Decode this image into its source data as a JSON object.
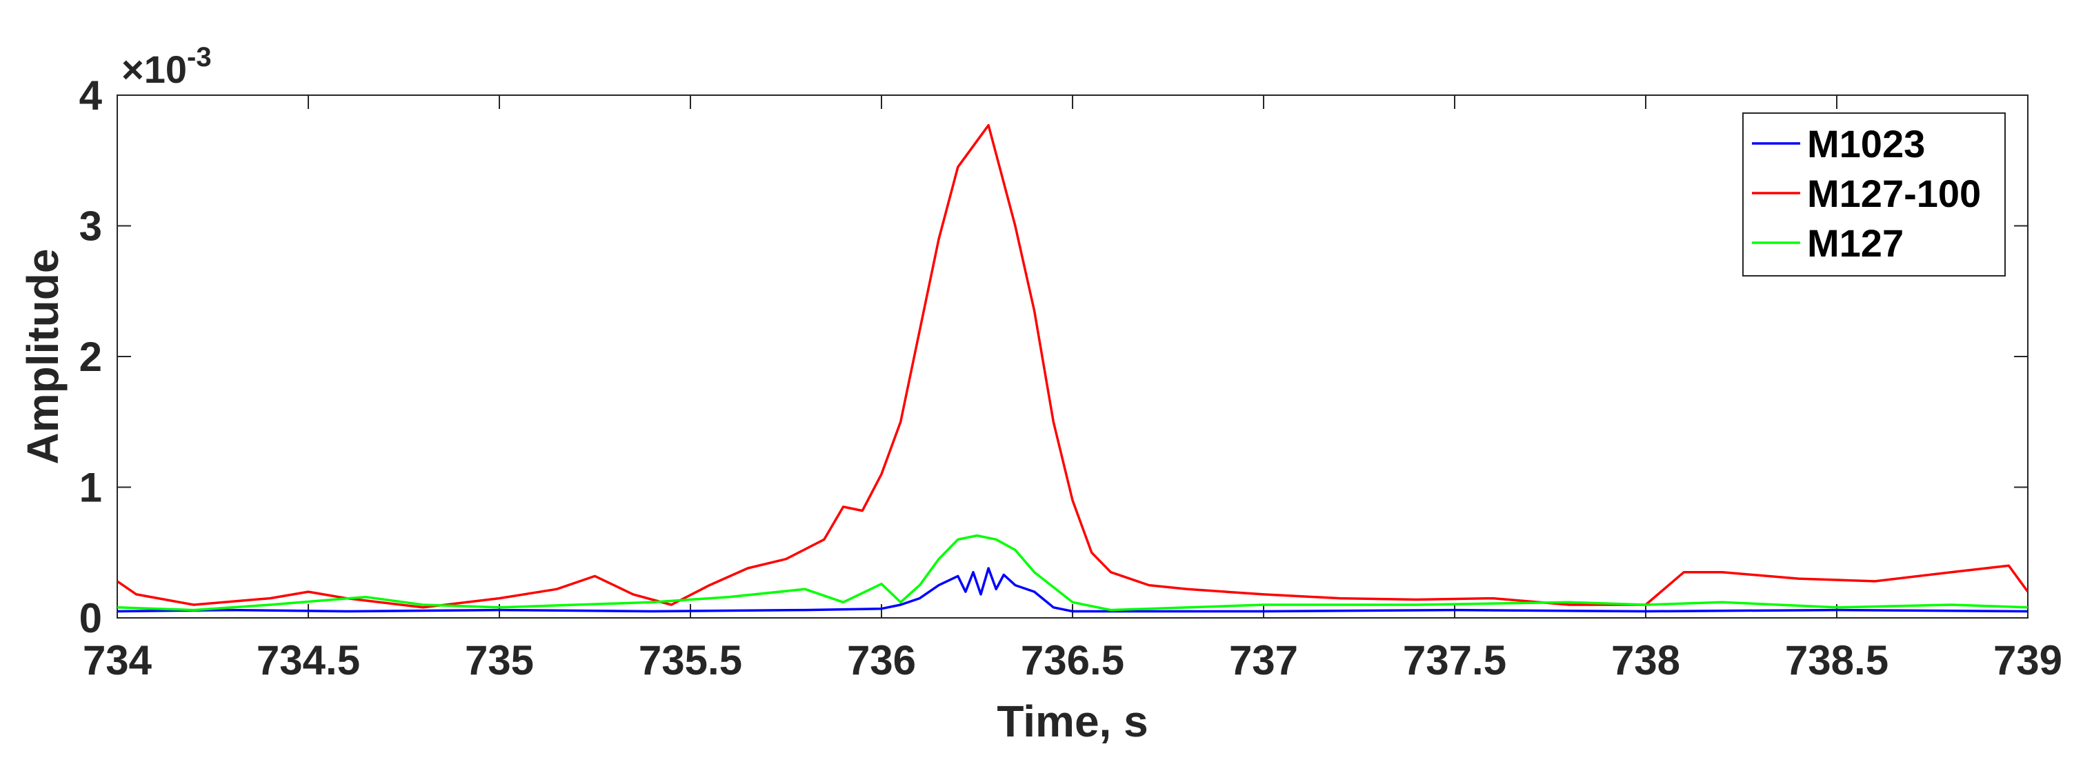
{
  "chart_data": {
    "type": "line",
    "xlabel": "Time, s",
    "ylabel": "Amplitude",
    "y_exponent_label": "×10",
    "y_exponent_power": "-3",
    "xlim": [
      734,
      739
    ],
    "ylim": [
      0,
      4
    ],
    "x_ticks": [
      734,
      734.5,
      735,
      735.5,
      736,
      736.5,
      737,
      737.5,
      738,
      738.5,
      739
    ],
    "x_tick_labels": [
      "734",
      "734.5",
      "735",
      "735.5",
      "736",
      "736.5",
      "737",
      "737.5",
      "738",
      "738.5",
      "739"
    ],
    "y_ticks": [
      0,
      1,
      2,
      3,
      4
    ],
    "y_tick_labels": [
      "0",
      "1",
      "2",
      "3",
      "4"
    ],
    "grid": false,
    "legend_position": "top-right",
    "series": [
      {
        "name": "M1023",
        "color": "#0000ff",
        "x": [
          734.0,
          734.3,
          734.6,
          735.0,
          735.4,
          735.8,
          736.0,
          736.05,
          736.1,
          736.15,
          736.2,
          736.22,
          736.24,
          736.26,
          736.28,
          736.3,
          736.32,
          736.35,
          736.4,
          736.45,
          736.5,
          737.0,
          737.5,
          738.0,
          738.5,
          739.0
        ],
        "y": [
          0.05,
          0.06,
          0.05,
          0.06,
          0.05,
          0.06,
          0.07,
          0.1,
          0.15,
          0.25,
          0.32,
          0.2,
          0.35,
          0.18,
          0.38,
          0.22,
          0.33,
          0.25,
          0.2,
          0.08,
          0.05,
          0.05,
          0.06,
          0.05,
          0.06,
          0.05
        ]
      },
      {
        "name": "M127-100",
        "color": "#ff0000",
        "x": [
          734.0,
          734.05,
          734.2,
          734.4,
          734.5,
          734.6,
          734.8,
          735.0,
          735.15,
          735.25,
          735.35,
          735.45,
          735.55,
          735.65,
          735.75,
          735.85,
          735.9,
          735.95,
          736.0,
          736.05,
          736.1,
          736.15,
          736.2,
          736.25,
          736.28,
          736.3,
          736.35,
          736.4,
          736.45,
          736.5,
          736.55,
          736.6,
          736.7,
          736.8,
          737.0,
          737.2,
          737.4,
          737.6,
          737.8,
          738.0,
          738.1,
          738.2,
          738.4,
          738.6,
          738.8,
          738.95,
          739.0
        ],
        "y": [
          0.28,
          0.18,
          0.1,
          0.15,
          0.2,
          0.15,
          0.08,
          0.15,
          0.22,
          0.32,
          0.18,
          0.1,
          0.25,
          0.38,
          0.45,
          0.6,
          0.85,
          0.82,
          1.1,
          1.5,
          2.2,
          2.9,
          3.45,
          3.65,
          3.77,
          3.55,
          3.0,
          2.35,
          1.5,
          0.9,
          0.5,
          0.35,
          0.25,
          0.22,
          0.18,
          0.15,
          0.14,
          0.15,
          0.1,
          0.1,
          0.35,
          0.35,
          0.3,
          0.28,
          0.35,
          0.4,
          0.2
        ]
      },
      {
        "name": "M127",
        "color": "#00ff00",
        "x": [
          734.0,
          734.2,
          734.4,
          734.65,
          734.8,
          735.0,
          735.2,
          735.4,
          735.6,
          735.8,
          735.9,
          736.0,
          736.05,
          736.1,
          736.15,
          736.2,
          736.25,
          736.3,
          736.35,
          736.4,
          736.5,
          736.6,
          737.0,
          737.4,
          737.8,
          738.0,
          738.2,
          738.5,
          738.8,
          739.0
        ],
        "y": [
          0.08,
          0.06,
          0.1,
          0.16,
          0.1,
          0.08,
          0.1,
          0.12,
          0.16,
          0.22,
          0.12,
          0.26,
          0.12,
          0.25,
          0.45,
          0.6,
          0.63,
          0.6,
          0.52,
          0.35,
          0.12,
          0.06,
          0.1,
          0.1,
          0.12,
          0.1,
          0.12,
          0.08,
          0.1,
          0.08
        ]
      }
    ]
  }
}
